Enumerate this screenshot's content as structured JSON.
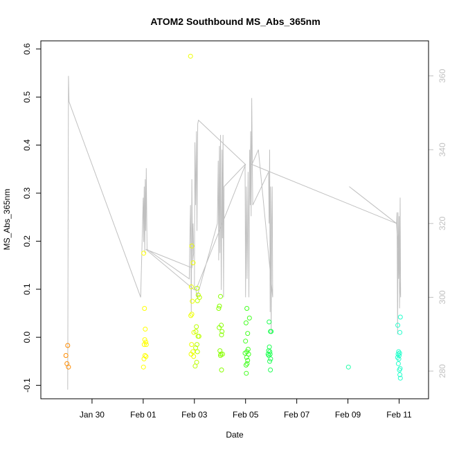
{
  "chart_data": {
    "type": "scatter",
    "title": "ATOM2 Southbound MS_Abs_365nm",
    "xlabel": "Date",
    "ylabel": "MS_Abs_365nm",
    "ylim": [
      -0.1,
      0.6
    ],
    "y2lim": [
      280,
      360
    ],
    "x_ticks": [
      {
        "day": 30,
        "label": "Jan 30"
      },
      {
        "day": 32,
        "label": "Feb 01"
      },
      {
        "day": 34,
        "label": "Feb 03"
      },
      {
        "day": 36,
        "label": "Feb 05"
      },
      {
        "day": 38,
        "label": "Feb 07"
      },
      {
        "day": 40,
        "label": "Feb 09"
      },
      {
        "day": 42,
        "label": "Feb 11"
      }
    ],
    "y_ticks": [
      {
        "value": -0.1,
        "label": "-0.1"
      },
      {
        "value": 0.0,
        "label": "0.0"
      },
      {
        "value": 0.1,
        "label": "0.1"
      },
      {
        "value": 0.2,
        "label": "0.2"
      },
      {
        "value": 0.3,
        "label": "0.3"
      },
      {
        "value": 0.4,
        "label": "0.4"
      },
      {
        "value": 0.5,
        "label": "0.5"
      },
      {
        "value": 0.6,
        "label": "0.6"
      }
    ],
    "y2_ticks": [
      {
        "value": 280,
        "label": "280"
      },
      {
        "value": 300,
        "label": "300"
      },
      {
        "value": 320,
        "label": "320"
      },
      {
        "value": 340,
        "label": "340"
      },
      {
        "value": 360,
        "label": "360"
      }
    ],
    "points": [
      {
        "day": 29.05,
        "y": -0.017,
        "color": "#ff8c00"
      },
      {
        "day": 28.98,
        "y": -0.038,
        "color": "#ff8c00"
      },
      {
        "day": 29.02,
        "y": -0.055,
        "color": "#ff8c00"
      },
      {
        "day": 29.08,
        "y": -0.062,
        "color": "#ff8c00"
      },
      {
        "day": 32.02,
        "y": 0.175,
        "color": "#ffff00"
      },
      {
        "day": 32.05,
        "y": 0.06,
        "color": "#ffff00"
      },
      {
        "day": 32.08,
        "y": 0.017,
        "color": "#ffff00"
      },
      {
        "day": 32.06,
        "y": -0.005,
        "color": "#ffff00"
      },
      {
        "day": 32.1,
        "y": -0.01,
        "color": "#ffff00"
      },
      {
        "day": 32.04,
        "y": -0.015,
        "color": "#ffff00"
      },
      {
        "day": 32.12,
        "y": -0.015,
        "color": "#ffff00"
      },
      {
        "day": 32.07,
        "y": -0.038,
        "color": "#ffff00"
      },
      {
        "day": 32.11,
        "y": -0.04,
        "color": "#ffff00"
      },
      {
        "day": 32.03,
        "y": -0.045,
        "color": "#ffff00"
      },
      {
        "day": 32.01,
        "y": -0.062,
        "color": "#ffff00"
      },
      {
        "day": 33.85,
        "y": 0.585,
        "color": "#eeff00"
      },
      {
        "day": 33.9,
        "y": 0.19,
        "color": "#eeff00"
      },
      {
        "day": 33.95,
        "y": 0.155,
        "color": "#eeff00"
      },
      {
        "day": 33.88,
        "y": 0.105,
        "color": "#eeff00"
      },
      {
        "day": 33.92,
        "y": 0.075,
        "color": "#eeff00"
      },
      {
        "day": 33.86,
        "y": 0.045,
        "color": "#eeff00"
      },
      {
        "day": 33.9,
        "y": 0.048,
        "color": "#eeff00"
      },
      {
        "day": 33.98,
        "y": 0.01,
        "color": "#eeff00"
      },
      {
        "day": 33.89,
        "y": -0.015,
        "color": "#eeff00"
      },
      {
        "day": 33.94,
        "y": -0.03,
        "color": "#eeff00"
      },
      {
        "day": 33.87,
        "y": -0.035,
        "color": "#eeff00"
      },
      {
        "day": 33.97,
        "y": -0.04,
        "color": "#eeff00"
      },
      {
        "day": 34.1,
        "y": 0.102,
        "color": "#bbff00"
      },
      {
        "day": 34.15,
        "y": 0.088,
        "color": "#bbff00"
      },
      {
        "day": 34.2,
        "y": 0.083,
        "color": "#bbff00"
      },
      {
        "day": 34.12,
        "y": 0.076,
        "color": "#bbff00"
      },
      {
        "day": 34.08,
        "y": 0.022,
        "color": "#bbff00"
      },
      {
        "day": 34.06,
        "y": 0.012,
        "color": "#bbff00"
      },
      {
        "day": 34.14,
        "y": 0.002,
        "color": "#bbff00"
      },
      {
        "day": 34.18,
        "y": 0.002,
        "color": "#bbff00"
      },
      {
        "day": 34.1,
        "y": -0.015,
        "color": "#bbff00"
      },
      {
        "day": 34.05,
        "y": -0.022,
        "color": "#bbff00"
      },
      {
        "day": 34.12,
        "y": -0.03,
        "color": "#bbff00"
      },
      {
        "day": 34.09,
        "y": -0.052,
        "color": "#bbff00"
      },
      {
        "day": 34.03,
        "y": -0.06,
        "color": "#bbff00"
      },
      {
        "day": 35.02,
        "y": 0.085,
        "color": "#88ff00"
      },
      {
        "day": 34.98,
        "y": 0.065,
        "color": "#88ff00"
      },
      {
        "day": 34.95,
        "y": 0.06,
        "color": "#88ff00"
      },
      {
        "day": 35.05,
        "y": 0.025,
        "color": "#88ff00"
      },
      {
        "day": 34.97,
        "y": 0.02,
        "color": "#88ff00"
      },
      {
        "day": 35.08,
        "y": 0.012,
        "color": "#88ff00"
      },
      {
        "day": 35.06,
        "y": 0.005,
        "color": "#88ff00"
      },
      {
        "day": 35.0,
        "y": -0.028,
        "color": "#88ff00"
      },
      {
        "day": 35.04,
        "y": -0.035,
        "color": "#88ff00"
      },
      {
        "day": 35.1,
        "y": -0.035,
        "color": "#88ff00"
      },
      {
        "day": 35.02,
        "y": -0.038,
        "color": "#88ff00"
      },
      {
        "day": 35.06,
        "y": -0.068,
        "color": "#88ff00"
      },
      {
        "day": 36.05,
        "y": 0.06,
        "color": "#44ff22"
      },
      {
        "day": 36.15,
        "y": 0.04,
        "color": "#44ff22"
      },
      {
        "day": 36.02,
        "y": 0.03,
        "color": "#44ff22"
      },
      {
        "day": 36.08,
        "y": 0.008,
        "color": "#44ff22"
      },
      {
        "day": 36.0,
        "y": -0.008,
        "color": "#44ff22"
      },
      {
        "day": 36.1,
        "y": -0.025,
        "color": "#44ff22"
      },
      {
        "day": 36.05,
        "y": -0.03,
        "color": "#44ff22"
      },
      {
        "day": 35.98,
        "y": -0.033,
        "color": "#44ff22"
      },
      {
        "day": 36.12,
        "y": -0.035,
        "color": "#44ff22"
      },
      {
        "day": 36.04,
        "y": -0.042,
        "color": "#44ff22"
      },
      {
        "day": 36.08,
        "y": -0.048,
        "color": "#44ff22"
      },
      {
        "day": 36.06,
        "y": -0.055,
        "color": "#44ff22"
      },
      {
        "day": 36.02,
        "y": -0.058,
        "color": "#44ff22"
      },
      {
        "day": 36.03,
        "y": -0.075,
        "color": "#44ff22"
      },
      {
        "day": 36.92,
        "y": 0.032,
        "color": "#22ff55"
      },
      {
        "day": 37.0,
        "y": 0.012,
        "color": "#22ff55"
      },
      {
        "day": 36.97,
        "y": 0.012,
        "color": "#22ff55"
      },
      {
        "day": 36.93,
        "y": -0.02,
        "color": "#22ff55"
      },
      {
        "day": 36.9,
        "y": -0.028,
        "color": "#22ff55"
      },
      {
        "day": 36.95,
        "y": -0.03,
        "color": "#22ff55"
      },
      {
        "day": 36.88,
        "y": -0.035,
        "color": "#22ff55"
      },
      {
        "day": 36.96,
        "y": -0.035,
        "color": "#22ff55"
      },
      {
        "day": 36.91,
        "y": -0.038,
        "color": "#22ff55"
      },
      {
        "day": 36.98,
        "y": -0.045,
        "color": "#22ff55"
      },
      {
        "day": 36.94,
        "y": -0.05,
        "color": "#22ff55"
      },
      {
        "day": 36.97,
        "y": -0.068,
        "color": "#22ff55"
      },
      {
        "day": 40.02,
        "y": -0.062,
        "color": "#22ffaa"
      },
      {
        "day": 41.95,
        "y": 0.025,
        "color": "#22ffcc"
      },
      {
        "day": 42.05,
        "y": 0.042,
        "color": "#22ffcc"
      },
      {
        "day": 42.03,
        "y": 0.01,
        "color": "#22ffcc"
      },
      {
        "day": 41.98,
        "y": -0.03,
        "color": "#22ffcc"
      },
      {
        "day": 42.02,
        "y": -0.033,
        "color": "#22ffcc"
      },
      {
        "day": 41.96,
        "y": -0.035,
        "color": "#22ffcc"
      },
      {
        "day": 42.0,
        "y": -0.038,
        "color": "#22ffcc"
      },
      {
        "day": 41.94,
        "y": -0.042,
        "color": "#22ffcc"
      },
      {
        "day": 41.99,
        "y": -0.045,
        "color": "#22ffcc"
      },
      {
        "day": 41.97,
        "y": -0.055,
        "color": "#22ffcc"
      },
      {
        "day": 42.04,
        "y": -0.065,
        "color": "#22ffcc"
      },
      {
        "day": 42.01,
        "y": -0.068,
        "color": "#22ffcc"
      },
      {
        "day": 42.03,
        "y": -0.078,
        "color": "#22ffcc"
      },
      {
        "day": 42.05,
        "y": -0.085,
        "color": "#22ffcc"
      }
    ],
    "line_series": {
      "color": "#c0c0c0",
      "points": [
        [
          29.05,
          275
        ],
        [
          29.08,
          360
        ],
        [
          29.1,
          353
        ],
        [
          31.9,
          300
        ],
        [
          32.0,
          327
        ],
        [
          32.02,
          315
        ],
        [
          32.04,
          330
        ],
        [
          32.06,
          312
        ],
        [
          32.08,
          332
        ],
        [
          32.1,
          318
        ],
        [
          32.12,
          335
        ],
        [
          32.15,
          313
        ],
        [
          33.8,
          305
        ],
        [
          33.82,
          315
        ],
        [
          33.85,
          325
        ],
        [
          33.88,
          296
        ],
        [
          33.9,
          332
        ],
        [
          33.93,
          310
        ],
        [
          33.95,
          320
        ],
        [
          33.97,
          312
        ],
        [
          33.9,
          308
        ],
        [
          32.1,
          313
        ],
        [
          34.0,
          302
        ],
        [
          34.02,
          342
        ],
        [
          34.05,
          325
        ],
        [
          34.08,
          345
        ],
        [
          34.1,
          318
        ],
        [
          34.13,
          347
        ],
        [
          34.16,
          348
        ],
        [
          36.0,
          336
        ],
        [
          34.06,
          302
        ],
        [
          34.1,
          300
        ],
        [
          34.9,
          320
        ],
        [
          34.93,
          337
        ],
        [
          34.95,
          310
        ],
        [
          34.98,
          341
        ],
        [
          35.0,
          312
        ],
        [
          35.02,
          344
        ],
        [
          35.05,
          302
        ],
        [
          35.08,
          340
        ],
        [
          35.1,
          316
        ],
        [
          35.12,
          344
        ],
        [
          35.14,
          300
        ],
        [
          35.16,
          330
        ],
        [
          35.98,
          336
        ],
        [
          36.0,
          300
        ],
        [
          36.03,
          330
        ],
        [
          36.06,
          305
        ],
        [
          36.1,
          334
        ],
        [
          36.13,
          300
        ],
        [
          36.16,
          340
        ],
        [
          36.18,
          325
        ],
        [
          36.2,
          345
        ],
        [
          36.22,
          322
        ],
        [
          36.24,
          354
        ],
        [
          36.26,
          340
        ],
        [
          36.28,
          325
        ],
        [
          36.9,
          334
        ],
        [
          36.92,
          320
        ],
        [
          36.94,
          340
        ],
        [
          36.96,
          296
        ],
        [
          36.98,
          330
        ],
        [
          37.0,
          290
        ],
        [
          37.02,
          320
        ],
        [
          37.04,
          330
        ],
        [
          37.06,
          300
        ],
        [
          36.5,
          340
        ],
        [
          36.25,
          336
        ],
        [
          41.9,
          320
        ],
        [
          41.92,
          323
        ],
        [
          41.94,
          290
        ],
        [
          41.96,
          323
        ],
        [
          41.98,
          305
        ],
        [
          42.0,
          322
        ],
        [
          42.02,
          297
        ],
        [
          42.04,
          327
        ],
        [
          42.06,
          300
        ],
        [
          41.9,
          320
        ],
        [
          40.05,
          330
        ],
        [
          41.9,
          320
        ]
      ]
    }
  }
}
